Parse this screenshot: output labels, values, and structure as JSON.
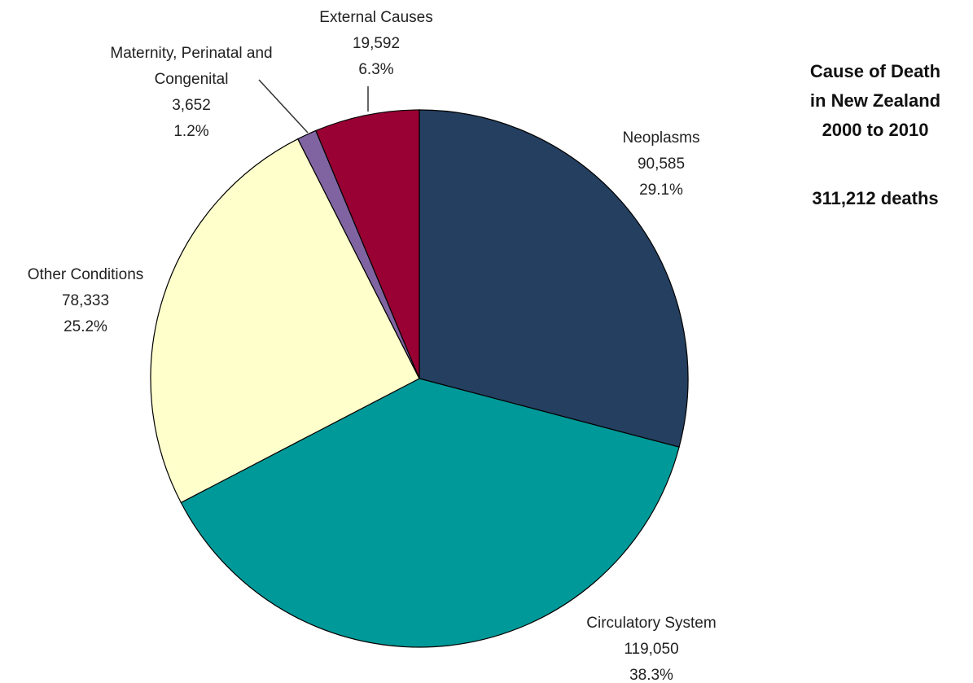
{
  "chart_data": {
    "type": "pie",
    "title": [
      "Cause of Death",
      "in New Zealand",
      "2000 to 2010"
    ],
    "subtitle": "311,212 deaths",
    "categories": [
      "Neoplasms",
      "Circulatory System",
      "Other Conditions",
      "Maternity, Perinatal and Congenital",
      "External Causes"
    ],
    "values": [
      90585,
      119050,
      78333,
      3652,
      19592
    ],
    "value_labels": [
      "90,585",
      "119,050",
      "78,333",
      "3,652",
      "19,592"
    ],
    "percents": [
      29.1,
      38.3,
      25.2,
      1.2,
      6.3
    ],
    "percent_labels": [
      "29.1%",
      "38.3%",
      "25.2%",
      "1.2%",
      "6.3%"
    ],
    "colors": [
      "#243f60",
      "#009999",
      "#ffffcc",
      "#8064a2",
      "#990033"
    ]
  }
}
